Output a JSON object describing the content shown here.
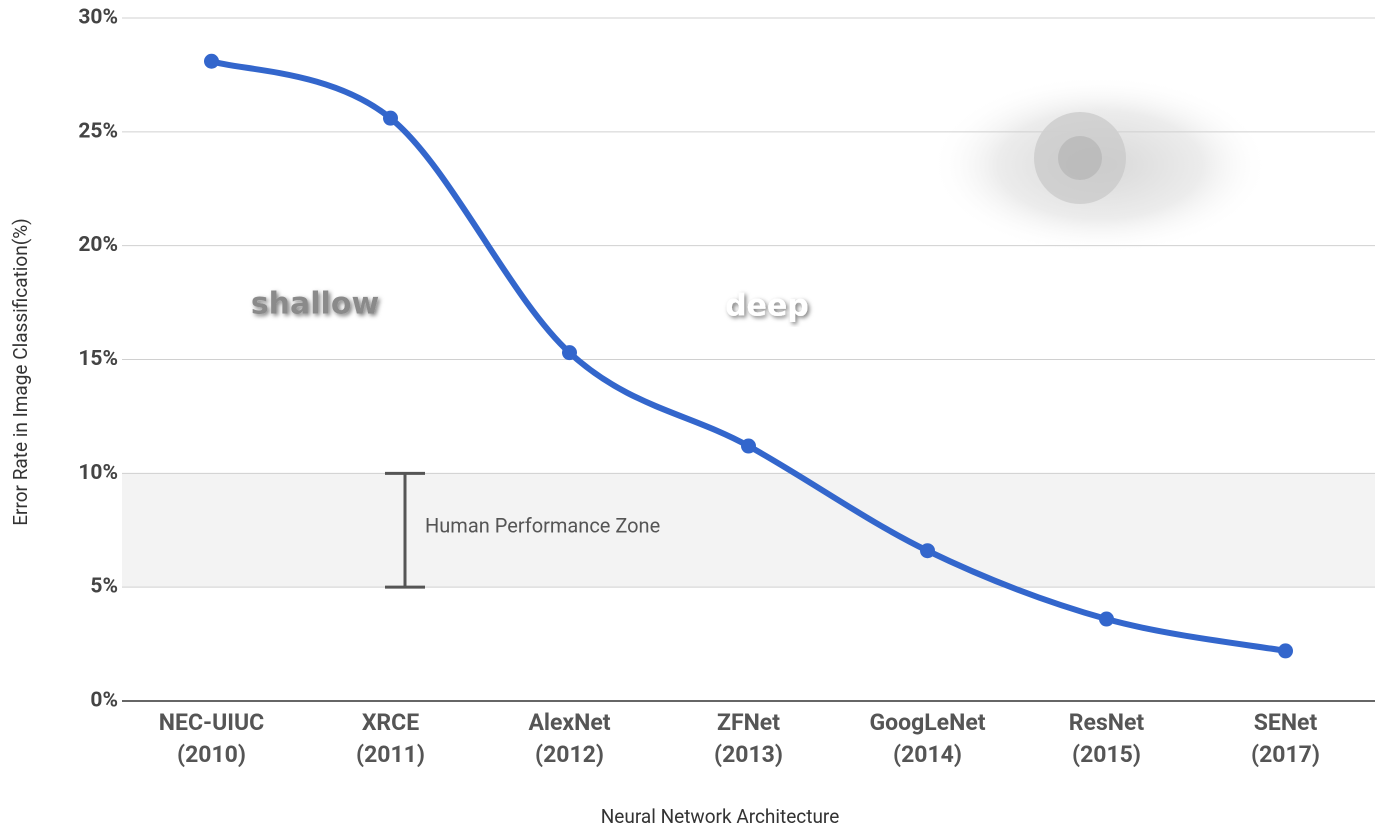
{
  "chart_data": {
    "type": "line",
    "x_label": "Neural Network Architecture",
    "y_label": "Error Rate in Image Classification(%)",
    "categories": [
      [
        "NEC-UIUC",
        "(2010)"
      ],
      [
        "XRCE",
        "(2011)"
      ],
      [
        "AlexNet",
        "(2012)"
      ],
      [
        "ZFNet",
        "(2013)"
      ],
      [
        "GoogLeNet",
        "(2014)"
      ],
      [
        "ResNet",
        "(2015)"
      ],
      [
        "SENet",
        "(2017)"
      ]
    ],
    "values": [
      28.1,
      25.6,
      15.3,
      11.2,
      6.6,
      3.6,
      2.2
    ],
    "color": "#3366cc",
    "ylim": [
      0,
      30
    ],
    "yticks": [
      {
        "value": 0,
        "label": "0%"
      },
      {
        "value": 5,
        "label": "5%"
      },
      {
        "value": 10,
        "label": "10%"
      },
      {
        "value": 15,
        "label": "15%"
      },
      {
        "value": 20,
        "label": "20%"
      },
      {
        "value": 25,
        "label": "25%"
      },
      {
        "value": 30,
        "label": "30%"
      }
    ],
    "grid": true,
    "human_zone": {
      "label": "Human Performance Zone",
      "range": [
        5,
        10
      ]
    },
    "annotations": [
      "shallow",
      "deep"
    ]
  }
}
